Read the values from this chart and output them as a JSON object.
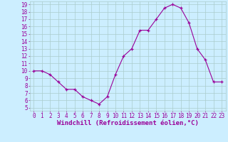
{
  "hours": [
    0,
    1,
    2,
    3,
    4,
    5,
    6,
    7,
    8,
    9,
    10,
    11,
    12,
    13,
    14,
    15,
    16,
    17,
    18,
    19,
    20,
    21,
    22,
    23
  ],
  "values": [
    10,
    10,
    9.5,
    8.5,
    7.5,
    7.5,
    6.5,
    6,
    5.5,
    6.5,
    9.5,
    12,
    13,
    15.5,
    15.5,
    17,
    18.5,
    19,
    18.5,
    16.5,
    13,
    11.5,
    8.5,
    8.5
  ],
  "line_color": "#990099",
  "marker": "+",
  "marker_color": "#990099",
  "bg_color": "#cceeff",
  "grid_color": "#aacccc",
  "xlabel": "Windchill (Refroidissement éolien,°C)",
  "xlabel_color": "#990099",
  "tick_color": "#990099",
  "ylim_min": 5,
  "ylim_max": 19,
  "yticks": [
    5,
    6,
    7,
    8,
    9,
    10,
    11,
    12,
    13,
    14,
    15,
    16,
    17,
    18,
    19
  ],
  "xticks": [
    0,
    1,
    2,
    3,
    4,
    5,
    6,
    7,
    8,
    9,
    10,
    11,
    12,
    13,
    14,
    15,
    16,
    17,
    18,
    19,
    20,
    21,
    22,
    23
  ],
  "figsize": [
    3.2,
    2.0
  ],
  "dpi": 100,
  "tick_fontsize": 5.5,
  "xlabel_fontsize": 6.5
}
